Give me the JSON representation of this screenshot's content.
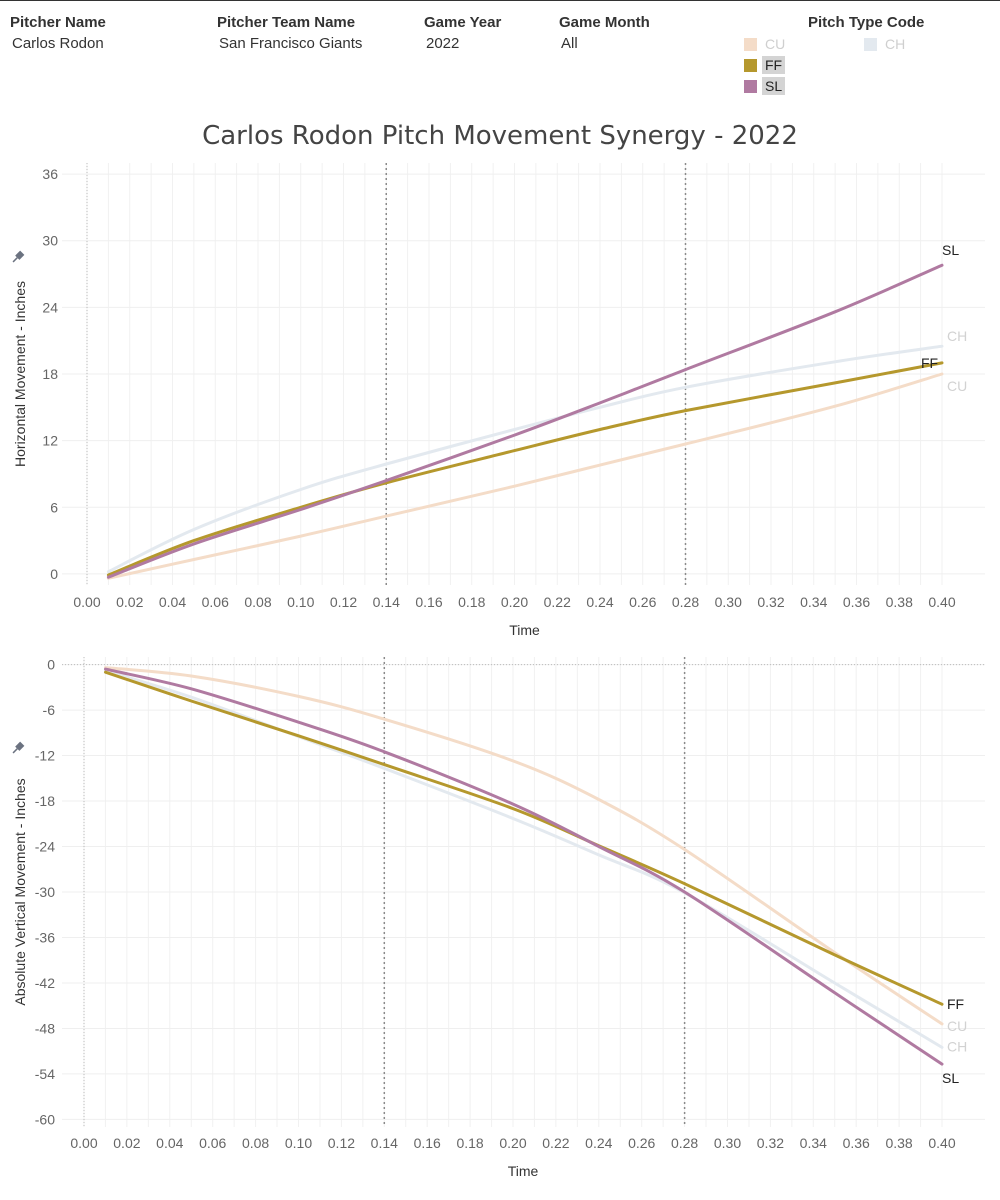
{
  "filters": [
    {
      "label": "Pitcher Name",
      "value": "Carlos Rodon"
    },
    {
      "label": "Pitcher Team Name",
      "value": "San Francisco Giants"
    },
    {
      "label": "Game Year",
      "value": "2022"
    },
    {
      "label": "Game Month",
      "value": "All"
    }
  ],
  "legend": {
    "title": "Pitch Type Code",
    "items": [
      {
        "code": "CU",
        "color": "#f4dcc8",
        "state": "faded"
      },
      {
        "code": "CH",
        "color": "#e3e9ef",
        "state": "faded"
      },
      {
        "code": "FF",
        "color": "#b5982d",
        "state": "active"
      },
      {
        "code": "SL",
        "color": "#b07aa1",
        "state": "active"
      }
    ]
  },
  "title": "Carlos Rodon Pitch Movement Synergy - 2022",
  "chart_data": [
    {
      "type": "line",
      "xlabel": "Time",
      "ylabel": "Horizontal Movement - Inches",
      "xlim": [
        0,
        0.4
      ],
      "ylim": [
        -1,
        37
      ],
      "x_ticks": [
        "0.00",
        "0.02",
        "0.04",
        "0.06",
        "0.08",
        "0.10",
        "0.12",
        "0.14",
        "0.16",
        "0.18",
        "0.20",
        "0.22",
        "0.24",
        "0.26",
        "0.28",
        "0.30",
        "0.32",
        "0.34",
        "0.36",
        "0.38",
        "0.40"
      ],
      "y_ticks": [
        "0",
        "6",
        "12",
        "18",
        "24",
        "30",
        "36"
      ],
      "reference_lines_x": [
        0.14,
        0.28
      ],
      "zero_line": false,
      "grid": true,
      "x": [
        0.01,
        0.05,
        0.1,
        0.14,
        0.2,
        0.24,
        0.28,
        0.35,
        0.4
      ],
      "series": [
        {
          "name": "CU",
          "color": "#f4dcc8",
          "faded": true,
          "label": "CU",
          "values": [
            -0.4,
            1.3,
            3.4,
            5.2,
            7.9,
            9.8,
            11.7,
            15.1,
            18.0
          ]
        },
        {
          "name": "CH",
          "color": "#e3e9ef",
          "faded": true,
          "label": "CH",
          "values": [
            0.2,
            4.0,
            7.6,
            9.9,
            13.0,
            15.0,
            16.8,
            19.1,
            20.5
          ]
        },
        {
          "name": "FF",
          "color": "#b5982d",
          "faded": false,
          "label": "FF",
          "values": [
            -0.1,
            3.0,
            6.0,
            8.2,
            11.1,
            13.0,
            14.7,
            17.2,
            19.0
          ]
        },
        {
          "name": "SL",
          "color": "#b07aa1",
          "faded": false,
          "label": "SL",
          "values": [
            -0.3,
            2.7,
            5.8,
            8.4,
            12.5,
            15.4,
            18.4,
            23.6,
            27.8
          ]
        }
      ]
    },
    {
      "type": "line",
      "xlabel": "Time",
      "ylabel": "Absolute Vertical Movement - Inches",
      "xlim": [
        0,
        0.4
      ],
      "ylim": [
        -61,
        1
      ],
      "x_ticks": [
        "0.00",
        "0.02",
        "0.04",
        "0.06",
        "0.08",
        "0.10",
        "0.12",
        "0.14",
        "0.16",
        "0.18",
        "0.20",
        "0.22",
        "0.24",
        "0.26",
        "0.28",
        "0.30",
        "0.32",
        "0.34",
        "0.36",
        "0.38",
        "0.40"
      ],
      "y_ticks": [
        "0",
        "-6",
        "-12",
        "-18",
        "-24",
        "-30",
        "-36",
        "-42",
        "-48",
        "-54",
        "-60"
      ],
      "reference_lines_x": [
        0.14,
        0.28
      ],
      "zero_line": true,
      "grid": true,
      "x": [
        0.01,
        0.05,
        0.1,
        0.14,
        0.2,
        0.24,
        0.28,
        0.35,
        0.4
      ],
      "series": [
        {
          "name": "CU",
          "color": "#f4dcc8",
          "faded": true,
          "label": "CU",
          "values": [
            -0.4,
            -1.5,
            -4.2,
            -7.2,
            -12.7,
            -17.8,
            -24.4,
            -38.0,
            -47.4
          ]
        },
        {
          "name": "CH",
          "color": "#e3e9ef",
          "faded": true,
          "label": "CH",
          "values": [
            -0.8,
            -4.3,
            -9.5,
            -13.7,
            -20.3,
            -25.1,
            -30.1,
            -42.0,
            -50.5
          ]
        },
        {
          "name": "FF",
          "color": "#b5982d",
          "faded": false,
          "label": "FF",
          "values": [
            -1.0,
            -4.8,
            -9.4,
            -13.2,
            -19.0,
            -23.9,
            -28.9,
            -38.3,
            -44.8
          ]
        },
        {
          "name": "SL",
          "color": "#b07aa1",
          "faded": false,
          "label": "SL",
          "values": [
            -0.6,
            -3.2,
            -7.6,
            -11.5,
            -18.4,
            -24.0,
            -30.0,
            -43.3,
            -52.7
          ]
        }
      ]
    }
  ]
}
